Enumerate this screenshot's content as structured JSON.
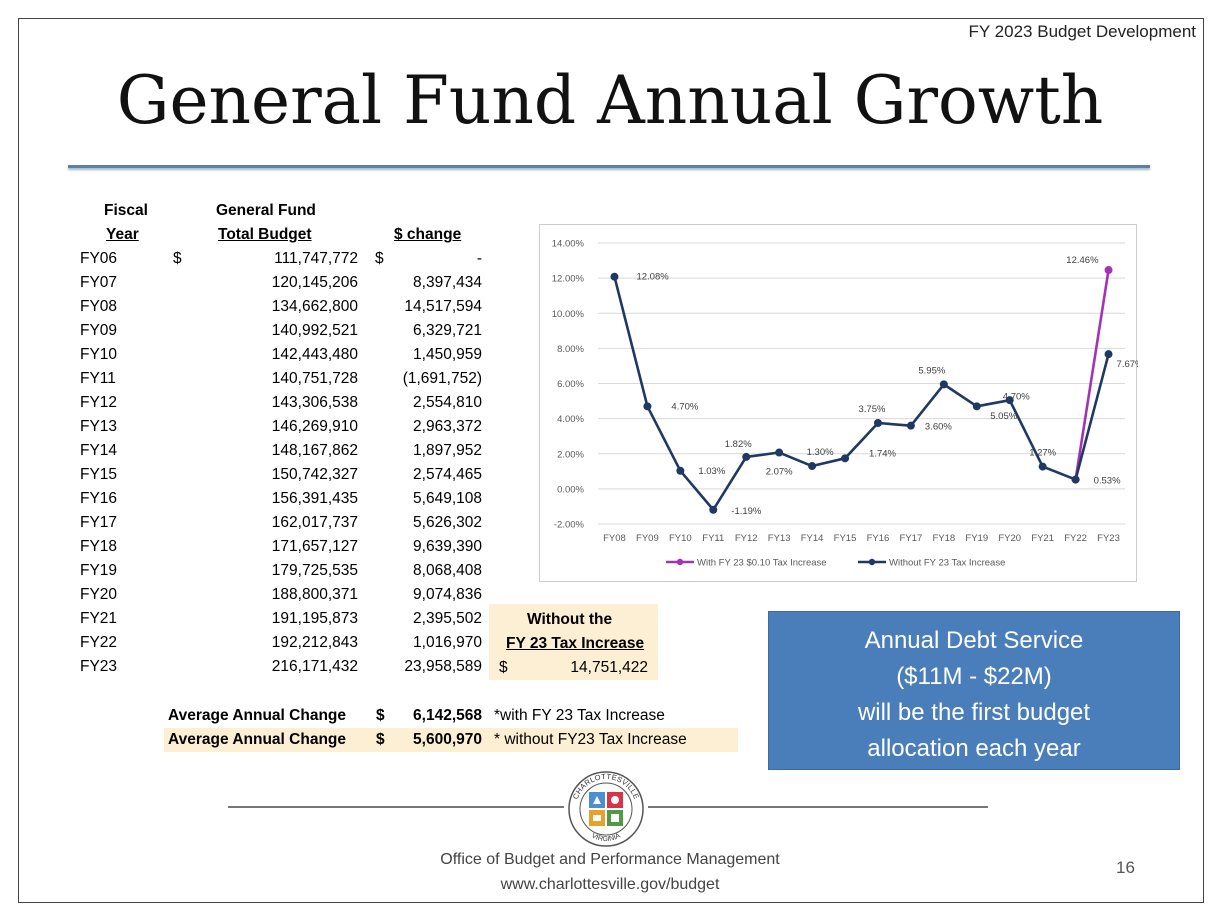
{
  "header_tag": "FY 2023 Budget Development",
  "title": "General Fund Annual Growth",
  "table": {
    "headers": {
      "fiscal_line1": "Fiscal",
      "fiscal_line2": "Year",
      "budget_line1": "General Fund",
      "budget_line2": "Total Budget",
      "change": "$ change"
    },
    "rows": [
      {
        "year": "FY06",
        "dollar": "$",
        "budget": "111,747,772",
        "change_dollar": "$",
        "change": "-"
      },
      {
        "year": "FY07",
        "dollar": "",
        "budget": "120,145,206",
        "change_dollar": "",
        "change": "8,397,434"
      },
      {
        "year": "FY08",
        "dollar": "",
        "budget": "134,662,800",
        "change_dollar": "",
        "change": "14,517,594"
      },
      {
        "year": "FY09",
        "dollar": "",
        "budget": "140,992,521",
        "change_dollar": "",
        "change": "6,329,721"
      },
      {
        "year": "FY10",
        "dollar": "",
        "budget": "142,443,480",
        "change_dollar": "",
        "change": "1,450,959"
      },
      {
        "year": "FY11",
        "dollar": "",
        "budget": "140,751,728",
        "change_dollar": "",
        "change": "(1,691,752)"
      },
      {
        "year": "FY12",
        "dollar": "",
        "budget": "143,306,538",
        "change_dollar": "",
        "change": "2,554,810"
      },
      {
        "year": "FY13",
        "dollar": "",
        "budget": "146,269,910",
        "change_dollar": "",
        "change": "2,963,372"
      },
      {
        "year": "FY14",
        "dollar": "",
        "budget": "148,167,862",
        "change_dollar": "",
        "change": "1,897,952"
      },
      {
        "year": "FY15",
        "dollar": "",
        "budget": "150,742,327",
        "change_dollar": "",
        "change": "2,574,465"
      },
      {
        "year": "FY16",
        "dollar": "",
        "budget": "156,391,435",
        "change_dollar": "",
        "change": "5,649,108"
      },
      {
        "year": "FY17",
        "dollar": "",
        "budget": "162,017,737",
        "change_dollar": "",
        "change": "5,626,302"
      },
      {
        "year": "FY18",
        "dollar": "",
        "budget": "171,657,127",
        "change_dollar": "",
        "change": "9,639,390"
      },
      {
        "year": "FY19",
        "dollar": "",
        "budget": "179,725,535",
        "change_dollar": "",
        "change": "8,068,408"
      },
      {
        "year": "FY20",
        "dollar": "",
        "budget": "188,800,371",
        "change_dollar": "",
        "change": "9,074,836"
      },
      {
        "year": "FY21",
        "dollar": "",
        "budget": "191,195,873",
        "change_dollar": "",
        "change": "2,395,502"
      },
      {
        "year": "FY22",
        "dollar": "",
        "budget": "192,212,843",
        "change_dollar": "",
        "change": "1,016,970"
      },
      {
        "year": "FY23",
        "dollar": "",
        "budget": "216,171,432",
        "change_dollar": "",
        "change": "23,958,589"
      }
    ],
    "without_box": {
      "line1": "Without the",
      "line2": "FY 23 Tax Increase",
      "dollar": "$",
      "value": "14,751,422"
    },
    "averages": [
      {
        "label": "Average Annual Change",
        "dollar": "$",
        "value": "6,142,568",
        "note": "*with FY 23 Tax Increase"
      },
      {
        "label": "Average Annual Change",
        "dollar": "$",
        "value": "5,600,970",
        "note": "* without FY23 Tax Increase"
      }
    ]
  },
  "chart_data": {
    "type": "line",
    "categories": [
      "FY08",
      "FY09",
      "FY10",
      "FY11",
      "FY12",
      "FY13",
      "FY14",
      "FY15",
      "FY16",
      "FY17",
      "FY18",
      "FY19",
      "FY20",
      "FY21",
      "FY22",
      "FY23"
    ],
    "ylim": [
      -2,
      14
    ],
    "yticks": [
      "14.00%",
      "12.00%",
      "10.00%",
      "8.00%",
      "6.00%",
      "4.00%",
      "2.00%",
      "0.00%",
      "-2.00%"
    ],
    "ytick_values": [
      14,
      12,
      10,
      8,
      6,
      4,
      2,
      0,
      -2
    ],
    "grid": true,
    "legend_position": "bottom",
    "series": [
      {
        "name": "With FY 23 $0.10 Tax Increase",
        "color": "#a333b5",
        "values": [
          null,
          null,
          null,
          null,
          null,
          null,
          null,
          null,
          null,
          null,
          null,
          null,
          null,
          null,
          0.53,
          12.46
        ]
      },
      {
        "name": "Without FY 23 Tax Increase",
        "color": "#1f3864",
        "values": [
          12.08,
          4.7,
          1.03,
          -1.19,
          1.82,
          2.07,
          1.3,
          1.74,
          3.75,
          3.6,
          5.95,
          4.7,
          5.05,
          1.27,
          0.53,
          7.67
        ]
      }
    ],
    "data_labels": [
      {
        "category": "FY08",
        "value": 12.08,
        "text": "12.08%"
      },
      {
        "category": "FY09",
        "value": 4.7,
        "text": "4.70%"
      },
      {
        "category": "FY10",
        "value": 1.03,
        "text": "1.03%"
      },
      {
        "category": "FY11",
        "value": -1.19,
        "text": "-1.19%"
      },
      {
        "category": "FY12",
        "value": 1.82,
        "text": "1.82%"
      },
      {
        "category": "FY13",
        "value": 2.07,
        "text": "2.07%"
      },
      {
        "category": "FY14",
        "value": 1.3,
        "text": "1.30%"
      },
      {
        "category": "FY15",
        "value": 1.74,
        "text": "1.74%"
      },
      {
        "category": "FY16",
        "value": 3.75,
        "text": "3.75%"
      },
      {
        "category": "FY17",
        "value": 3.6,
        "text": "3.60%"
      },
      {
        "category": "FY18",
        "value": 5.95,
        "text": "5.95%"
      },
      {
        "category": "FY19",
        "value": 4.7,
        "text": "4.70%"
      },
      {
        "category": "FY20",
        "value": 5.05,
        "text": "5.05%"
      },
      {
        "category": "FY21",
        "value": 1.27,
        "text": "1.27%"
      },
      {
        "category": "FY22",
        "value": 0.53,
        "text": "0.53%"
      },
      {
        "category": "FY23",
        "value": 12.46,
        "text": "12.46%"
      },
      {
        "category": "FY23",
        "value": 7.67,
        "text": "7.67%"
      }
    ]
  },
  "debt_box": {
    "line1": "Annual Debt Service",
    "line2": "($11M - $22M)",
    "line3": "will be the first budget",
    "line4": "allocation each year"
  },
  "seal": {
    "top_text": "CHARLOTTESVILLE",
    "bottom_text": "VIRGINIA",
    "year_text": "1762"
  },
  "footer": {
    "office": "Office of Budget and Performance Management",
    "url": "www.charlottesville.gov/budget"
  },
  "page_number": "16"
}
